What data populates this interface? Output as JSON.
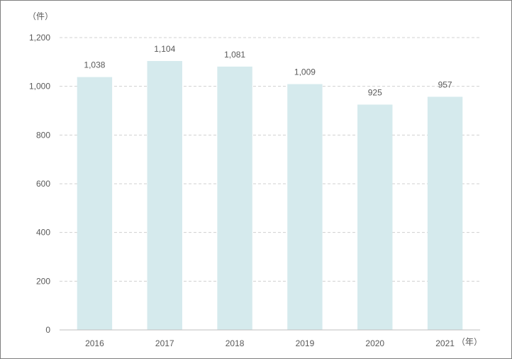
{
  "chart_data": {
    "type": "bar",
    "title": "",
    "ylabel": "（件）",
    "xlabel": "（年）",
    "categories": [
      "2016",
      "2017",
      "2018",
      "2019",
      "2020",
      "2021"
    ],
    "values": [
      1038,
      1104,
      1081,
      1009,
      925,
      957
    ],
    "value_labels": [
      "1,038",
      "1,104",
      "1,081",
      "1,009",
      "925",
      "957"
    ],
    "ylim": [
      0,
      1200
    ],
    "yticks": [
      0,
      200,
      400,
      600,
      800,
      1000,
      1200
    ],
    "ytick_labels": [
      "0",
      "200",
      "400",
      "600",
      "800",
      "1,000",
      "1,200"
    ],
    "grid": true,
    "legend": "none",
    "colors": {
      "bar": "#d5eaed",
      "grid": "#d0d0d0",
      "axis": "#bfbfbf",
      "text": "#595959"
    }
  }
}
